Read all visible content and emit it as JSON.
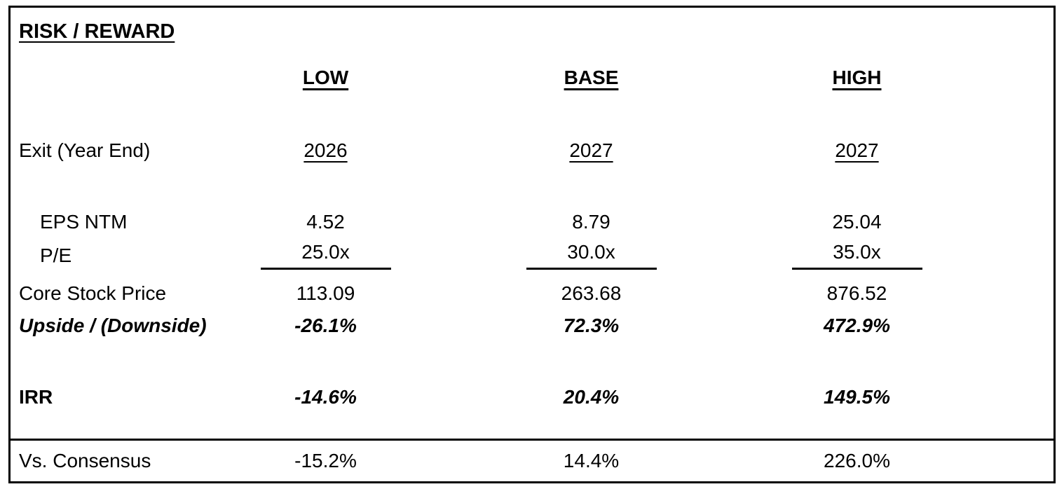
{
  "title": "RISK / REWARD",
  "columns": [
    "LOW",
    "BASE",
    "HIGH"
  ],
  "rows": {
    "exit": {
      "label": "Exit (Year End)",
      "values": [
        "2026",
        "2027",
        "2027"
      ]
    },
    "eps": {
      "label": "EPS NTM",
      "values": [
        "4.52",
        "8.79",
        "25.04"
      ]
    },
    "pe": {
      "label": "P/E",
      "values": [
        "25.0x",
        "30.0x",
        "35.0x"
      ]
    },
    "price": {
      "label": "Core Stock Price",
      "values": [
        "113.09",
        "263.68",
        "876.52"
      ]
    },
    "upside": {
      "label": "Upside / (Downside)",
      "values": [
        "-26.1%",
        "72.3%",
        "472.9%"
      ]
    },
    "irr": {
      "label": "IRR",
      "values": [
        "-14.6%",
        "20.4%",
        "149.5%"
      ]
    },
    "consensus": {
      "label": "Vs. Consensus",
      "values": [
        "-15.2%",
        "14.4%",
        "226.0%"
      ]
    }
  },
  "chart_data": {
    "type": "table",
    "title": "RISK / REWARD",
    "columns": [
      "",
      "LOW",
      "BASE",
      "HIGH"
    ],
    "rows": [
      [
        "Exit (Year End)",
        "2026",
        "2027",
        "2027"
      ],
      [
        "EPS NTM",
        "4.52",
        "8.79",
        "25.04"
      ],
      [
        "P/E",
        "25.0x",
        "30.0x",
        "35.0x"
      ],
      [
        "Core Stock Price",
        "113.09",
        "263.68",
        "876.52"
      ],
      [
        "Upside / (Downside)",
        "-26.1%",
        "72.3%",
        "472.9%"
      ],
      [
        "IRR",
        "-14.6%",
        "20.4%",
        "149.5%"
      ],
      [
        "Vs. Consensus",
        "-15.2%",
        "14.4%",
        "226.0%"
      ]
    ]
  }
}
